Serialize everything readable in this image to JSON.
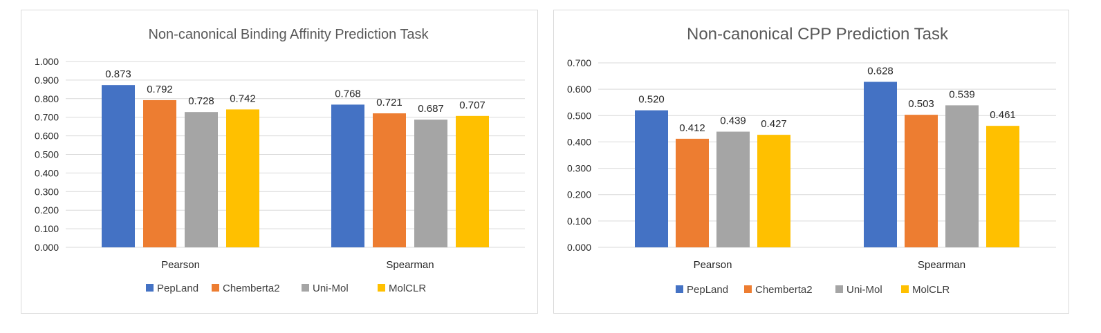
{
  "chart_data": [
    {
      "type": "bar",
      "title": "Non-canonical Binding Affinity Prediction Task",
      "categories": [
        "Pearson",
        "Spearman"
      ],
      "series": [
        {
          "name": "PepLand",
          "color": "#4472C4",
          "values": [
            0.873,
            0.768
          ],
          "labels": [
            "0.873",
            "0.768"
          ]
        },
        {
          "name": "Chemberta2",
          "color": "#ED7D31",
          "values": [
            0.792,
            0.721
          ],
          "labels": [
            "0.792",
            "0.721"
          ]
        },
        {
          "name": "Uni-Mol",
          "color": "#A5A5A5",
          "values": [
            0.728,
            0.687
          ],
          "labels": [
            "0.728",
            "0.687"
          ]
        },
        {
          "name": "MolCLR",
          "color": "#FFC000",
          "values": [
            0.742,
            0.707
          ],
          "labels": [
            "0.742",
            "0.707"
          ]
        }
      ],
      "ylim": [
        0,
        1.0
      ],
      "yticks": [
        "0.000",
        "0.100",
        "0.200",
        "0.300",
        "0.400",
        "0.500",
        "0.600",
        "0.700",
        "0.800",
        "0.900",
        "1.000"
      ],
      "grid": true,
      "legend": "bottom"
    },
    {
      "type": "bar",
      "title": "Non-canonical CPP Prediction Task",
      "categories": [
        "Pearson",
        "Spearman"
      ],
      "series": [
        {
          "name": "PepLand",
          "color": "#4472C4",
          "values": [
            0.52,
            0.628
          ],
          "labels": [
            "0.520",
            "0.628"
          ]
        },
        {
          "name": "Chemberta2",
          "color": "#ED7D31",
          "values": [
            0.412,
            0.503
          ],
          "labels": [
            "0.412",
            "0.503"
          ]
        },
        {
          "name": "Uni-Mol",
          "color": "#A5A5A5",
          "values": [
            0.439,
            0.539
          ],
          "labels": [
            "0.439",
            "0.539"
          ]
        },
        {
          "name": "MolCLR",
          "color": "#FFC000",
          "values": [
            0.427,
            0.461
          ],
          "labels": [
            "0.427",
            "0.461"
          ]
        }
      ],
      "ylim": [
        0,
        0.7
      ],
      "yticks": [
        "0.000",
        "0.100",
        "0.200",
        "0.300",
        "0.400",
        "0.500",
        "0.600",
        "0.700"
      ],
      "grid": true,
      "legend": "bottom"
    }
  ]
}
